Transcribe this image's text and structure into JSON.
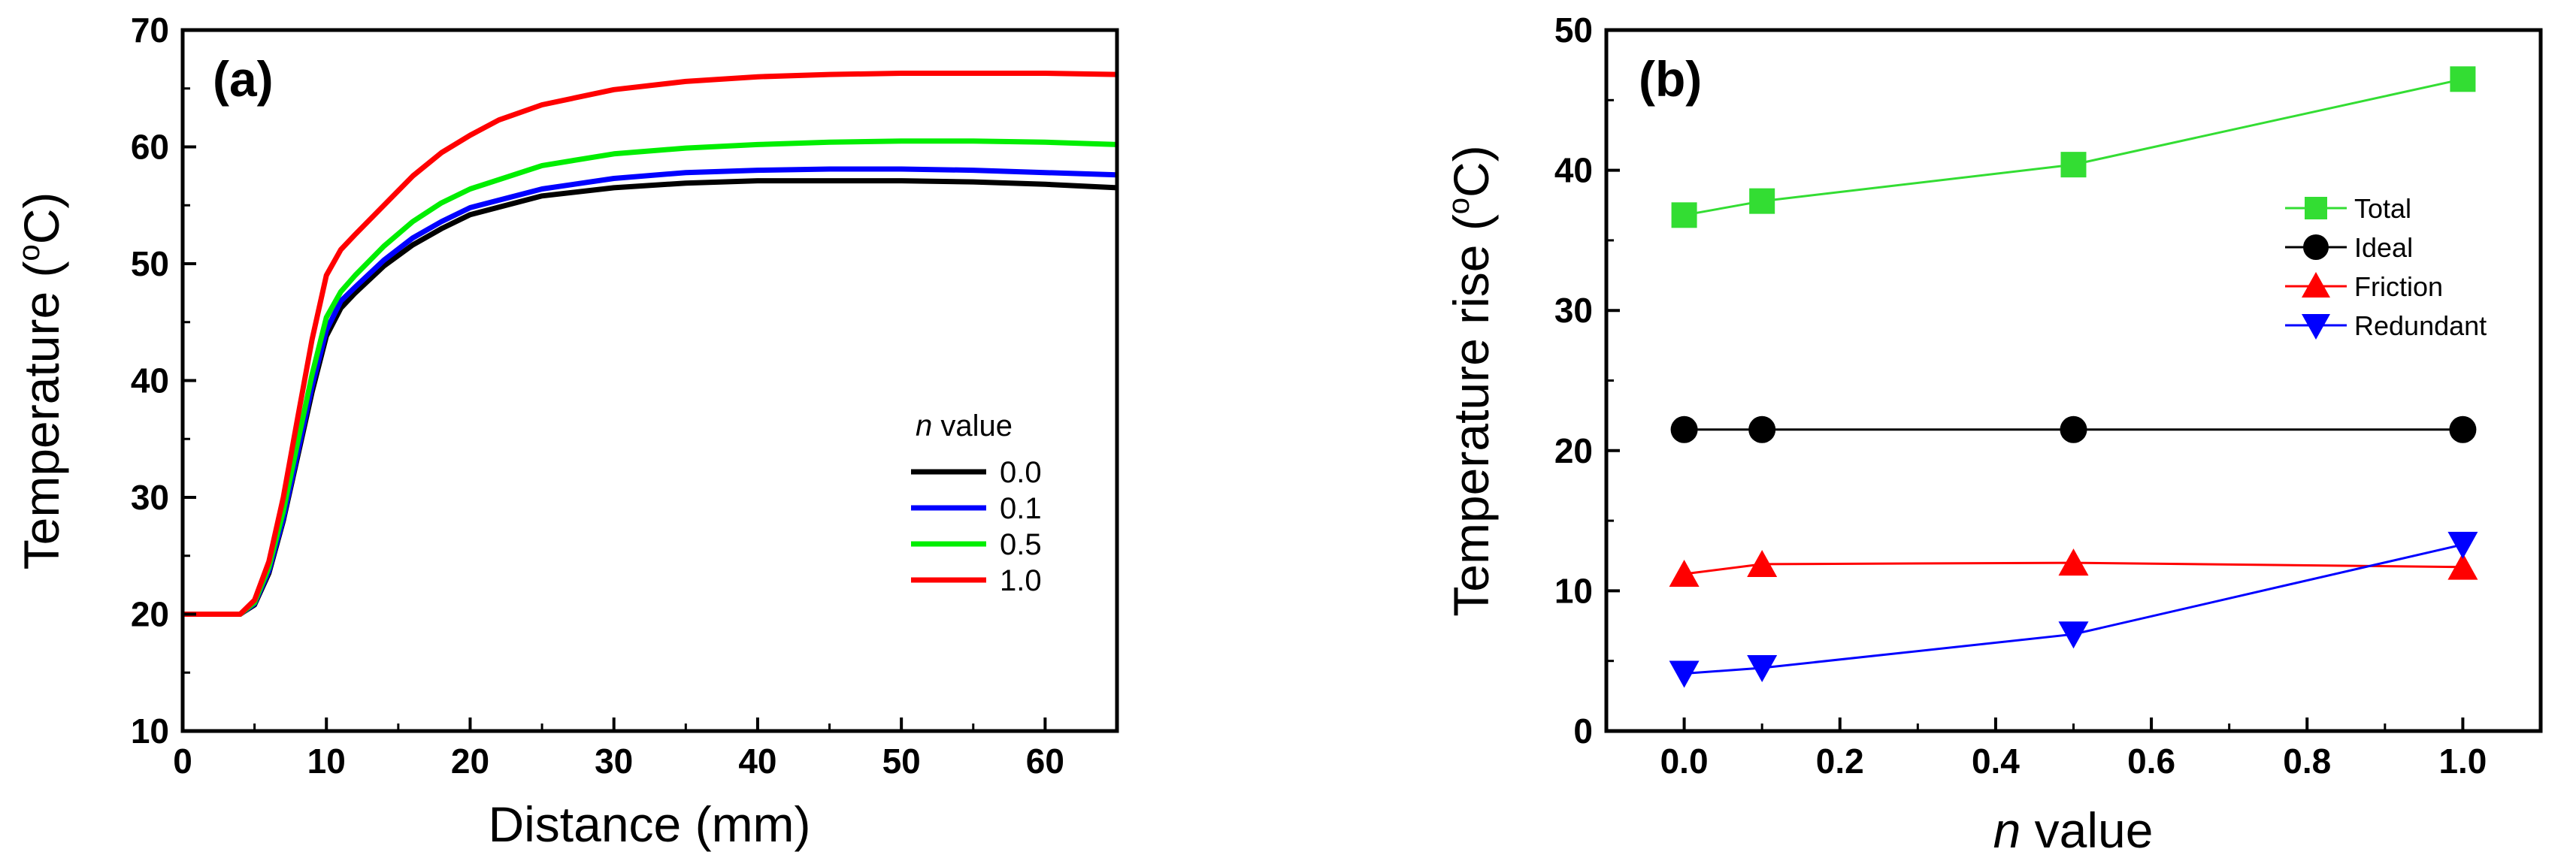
{
  "chart_data": [
    {
      "panel": "(a)",
      "type": "line",
      "xlabel": "Distance (mm)",
      "ylabel_main": "Temperature (",
      "ylabel_sup": "o",
      "ylabel_end": "C)",
      "xlim": [
        0,
        65
      ],
      "ylim": [
        10,
        70
      ],
      "xticks": [
        0,
        10,
        20,
        30,
        40,
        50,
        60
      ],
      "yticks": [
        10,
        20,
        30,
        40,
        50,
        60,
        70
      ],
      "legend_title_italic": "n",
      "legend_title_rest": " value",
      "legend_position": "center-right",
      "series": [
        {
          "name": "0.0",
          "color": "#000000",
          "x": [
            0,
            4,
            5,
            6,
            7,
            8,
            9,
            10,
            11,
            12,
            14,
            16,
            18,
            20,
            25,
            30,
            35,
            40,
            45,
            50,
            55,
            60,
            65
          ],
          "y": [
            20,
            20,
            20.8,
            23.5,
            28,
            33.5,
            39,
            43.8,
            46.2,
            47.5,
            49.8,
            51.6,
            53,
            54.2,
            55.8,
            56.5,
            56.9,
            57.1,
            57.1,
            57.1,
            57,
            56.8,
            56.5
          ]
        },
        {
          "name": "0.1",
          "color": "#0000ff",
          "x": [
            0,
            4,
            5,
            6,
            7,
            8,
            9,
            10,
            11,
            12,
            14,
            16,
            18,
            20,
            25,
            30,
            35,
            40,
            45,
            50,
            55,
            60,
            65
          ],
          "y": [
            20,
            20,
            20.9,
            23.7,
            28.2,
            33.8,
            39.5,
            44.3,
            46.8,
            48,
            50.3,
            52.2,
            53.6,
            54.8,
            56.4,
            57.3,
            57.8,
            58,
            58.1,
            58.1,
            58,
            57.8,
            57.6
          ]
        },
        {
          "name": "0.5",
          "color": "#00ee00",
          "x": [
            0,
            4,
            5,
            6,
            7,
            8,
            9,
            10,
            11,
            12,
            14,
            16,
            18,
            20,
            25,
            30,
            35,
            40,
            45,
            50,
            55,
            60,
            65
          ],
          "y": [
            20,
            20,
            21,
            24,
            28.8,
            34.7,
            40.5,
            45.4,
            47.6,
            49,
            51.5,
            53.6,
            55.2,
            56.4,
            58.4,
            59.4,
            59.9,
            60.2,
            60.4,
            60.5,
            60.5,
            60.4,
            60.2
          ]
        },
        {
          "name": "1.0",
          "color": "#ff0000",
          "x": [
            0,
            4,
            5,
            6,
            7,
            8,
            9,
            10,
            11,
            12,
            14,
            16,
            18,
            20,
            22,
            25,
            30,
            35,
            40,
            45,
            50,
            55,
            60,
            65
          ],
          "y": [
            20,
            20,
            21.2,
            24.5,
            30,
            36.8,
            43.5,
            49,
            51.2,
            52.5,
            55,
            57.5,
            59.5,
            61,
            62.3,
            63.6,
            64.9,
            65.6,
            66,
            66.2,
            66.3,
            66.3,
            66.3,
            66.2
          ]
        }
      ]
    },
    {
      "panel": "(b)",
      "type": "line",
      "xlabel_italic": "n",
      "xlabel_rest": " value",
      "ylabel_main": "Temperature rise (",
      "ylabel_sup": "o",
      "ylabel_end": "C)",
      "xlim": [
        -0.1,
        1.1
      ],
      "ylim": [
        0,
        50
      ],
      "xticks": [
        "0.0",
        "0.2",
        "0.4",
        "0.6",
        "0.8",
        "1.0"
      ],
      "yticks": [
        0,
        10,
        20,
        30,
        40,
        50
      ],
      "legend_position": "upper-right",
      "x": [
        0.0,
        0.1,
        0.5,
        1.0
      ],
      "series": [
        {
          "name": "Total",
          "color": "#33dd33",
          "marker": "square",
          "values": [
            36.8,
            37.8,
            40.4,
            46.5
          ]
        },
        {
          "name": "Ideal",
          "color": "#000000",
          "marker": "circle",
          "values": [
            21.5,
            21.5,
            21.5,
            21.5
          ]
        },
        {
          "name": "Friction",
          "color": "#ff0000",
          "marker": "triangle-up",
          "values": [
            11.2,
            11.9,
            12.0,
            11.7
          ]
        },
        {
          "name": "Redundant",
          "color": "#0000ff",
          "marker": "triangle-down",
          "values": [
            4.1,
            4.5,
            6.9,
            13.3
          ]
        }
      ]
    }
  ]
}
